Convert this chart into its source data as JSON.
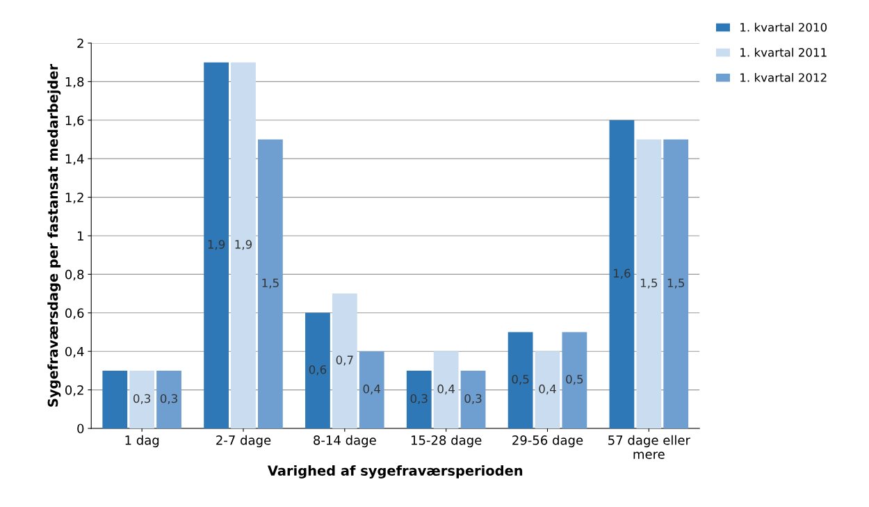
{
  "chart_data": {
    "type": "bar",
    "xlabel": "Varighed af sygefraværsperioden",
    "ylabel": "Sygefraværsdage per fastansat medarbejder",
    "categories": [
      "1 dag",
      "2-7 dage",
      "8-14 dage",
      "15-28 dage",
      "29-56 dage",
      "57 dage eller\nmere"
    ],
    "series": [
      {
        "name": "1. kvartal 2010",
        "color": "#2e78b8",
        "values": [
          0.3,
          1.9,
          0.6,
          0.3,
          0.5,
          1.6
        ],
        "value_labels": [
          null,
          "1,9",
          "0,6",
          "0,3",
          "0,5",
          "1,6"
        ]
      },
      {
        "name": "1. kvartal 2011",
        "color": "#c9dcf0",
        "values": [
          0.3,
          1.9,
          0.7,
          0.4,
          0.4,
          1.5
        ],
        "value_labels": [
          "0,3",
          "1,9",
          "0,7",
          "0,4",
          "0,4",
          "1,5"
        ]
      },
      {
        "name": "1. kvartal 2012",
        "color": "#6f9fd0",
        "values": [
          0.3,
          1.5,
          0.4,
          0.3,
          0.5,
          1.5
        ],
        "value_labels": [
          "0,3",
          "1,5",
          "0,4",
          "0,3",
          "0,5",
          "1,5"
        ]
      }
    ],
    "ylim": [
      0,
      2
    ],
    "yticks": [
      0,
      {
        "value": 0.2,
        "label": "0,2"
      },
      {
        "value": 0.4,
        "label": "0,4"
      },
      {
        "value": 0.6,
        "label": "0,6"
      },
      {
        "value": 0.8,
        "label": "0,8"
      },
      1,
      {
        "value": 1.2,
        "label": "1,2"
      },
      {
        "value": 1.4,
        "label": "1,4"
      },
      {
        "value": 1.6,
        "label": "1,6"
      },
      {
        "value": 1.8,
        "label": "1,8"
      },
      2
    ],
    "grid": "y",
    "legend": "top right"
  }
}
